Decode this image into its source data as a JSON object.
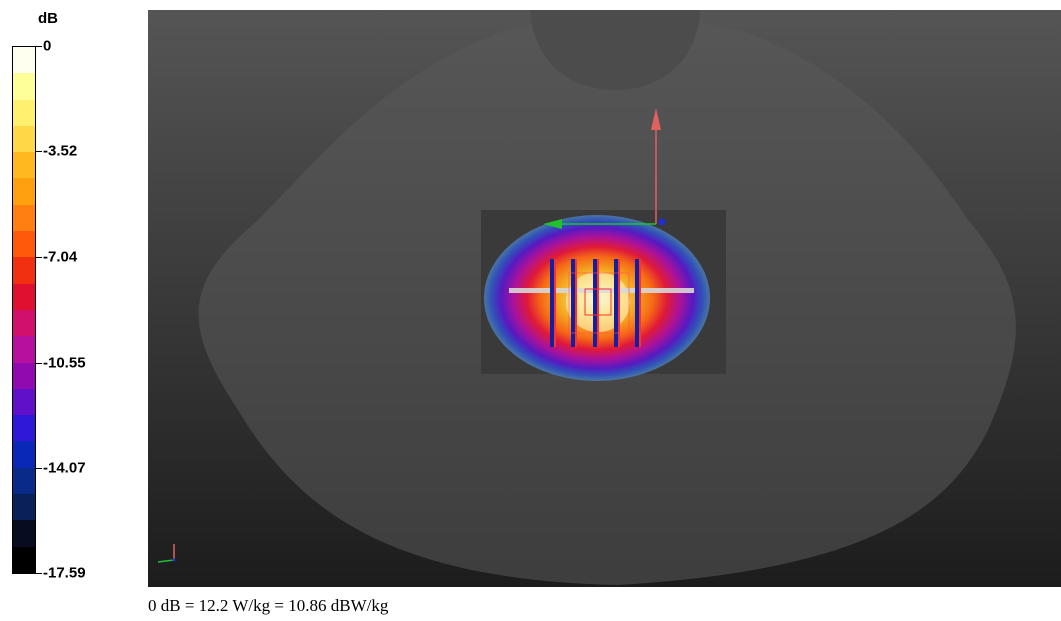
{
  "legend": {
    "unit": "dB",
    "ticks": [
      "0",
      "-3.52",
      "-7.04",
      "-10.55",
      "-14.07",
      "-17.59"
    ],
    "colors": [
      "#fffff0",
      "#ffff9a",
      "#fff070",
      "#ffd848",
      "#ffb820",
      "#ffa010",
      "#ff8010",
      "#ff5a0c",
      "#f03010",
      "#e01030",
      "#d0106a",
      "#b8109e",
      "#900ab0",
      "#6010c8",
      "#3018d8",
      "#0a28b8",
      "#0a2a88",
      "#0a2058",
      "#080c20",
      "#000000"
    ]
  },
  "scene": {
    "measurement_box_color": "#3a3a3a",
    "axis_colors": {
      "x": "#20c030",
      "y": "#e06060",
      "z": "#2030d0"
    }
  },
  "caption": "0 dB = 12.2 W/kg = 10.86 dBW/kg"
}
